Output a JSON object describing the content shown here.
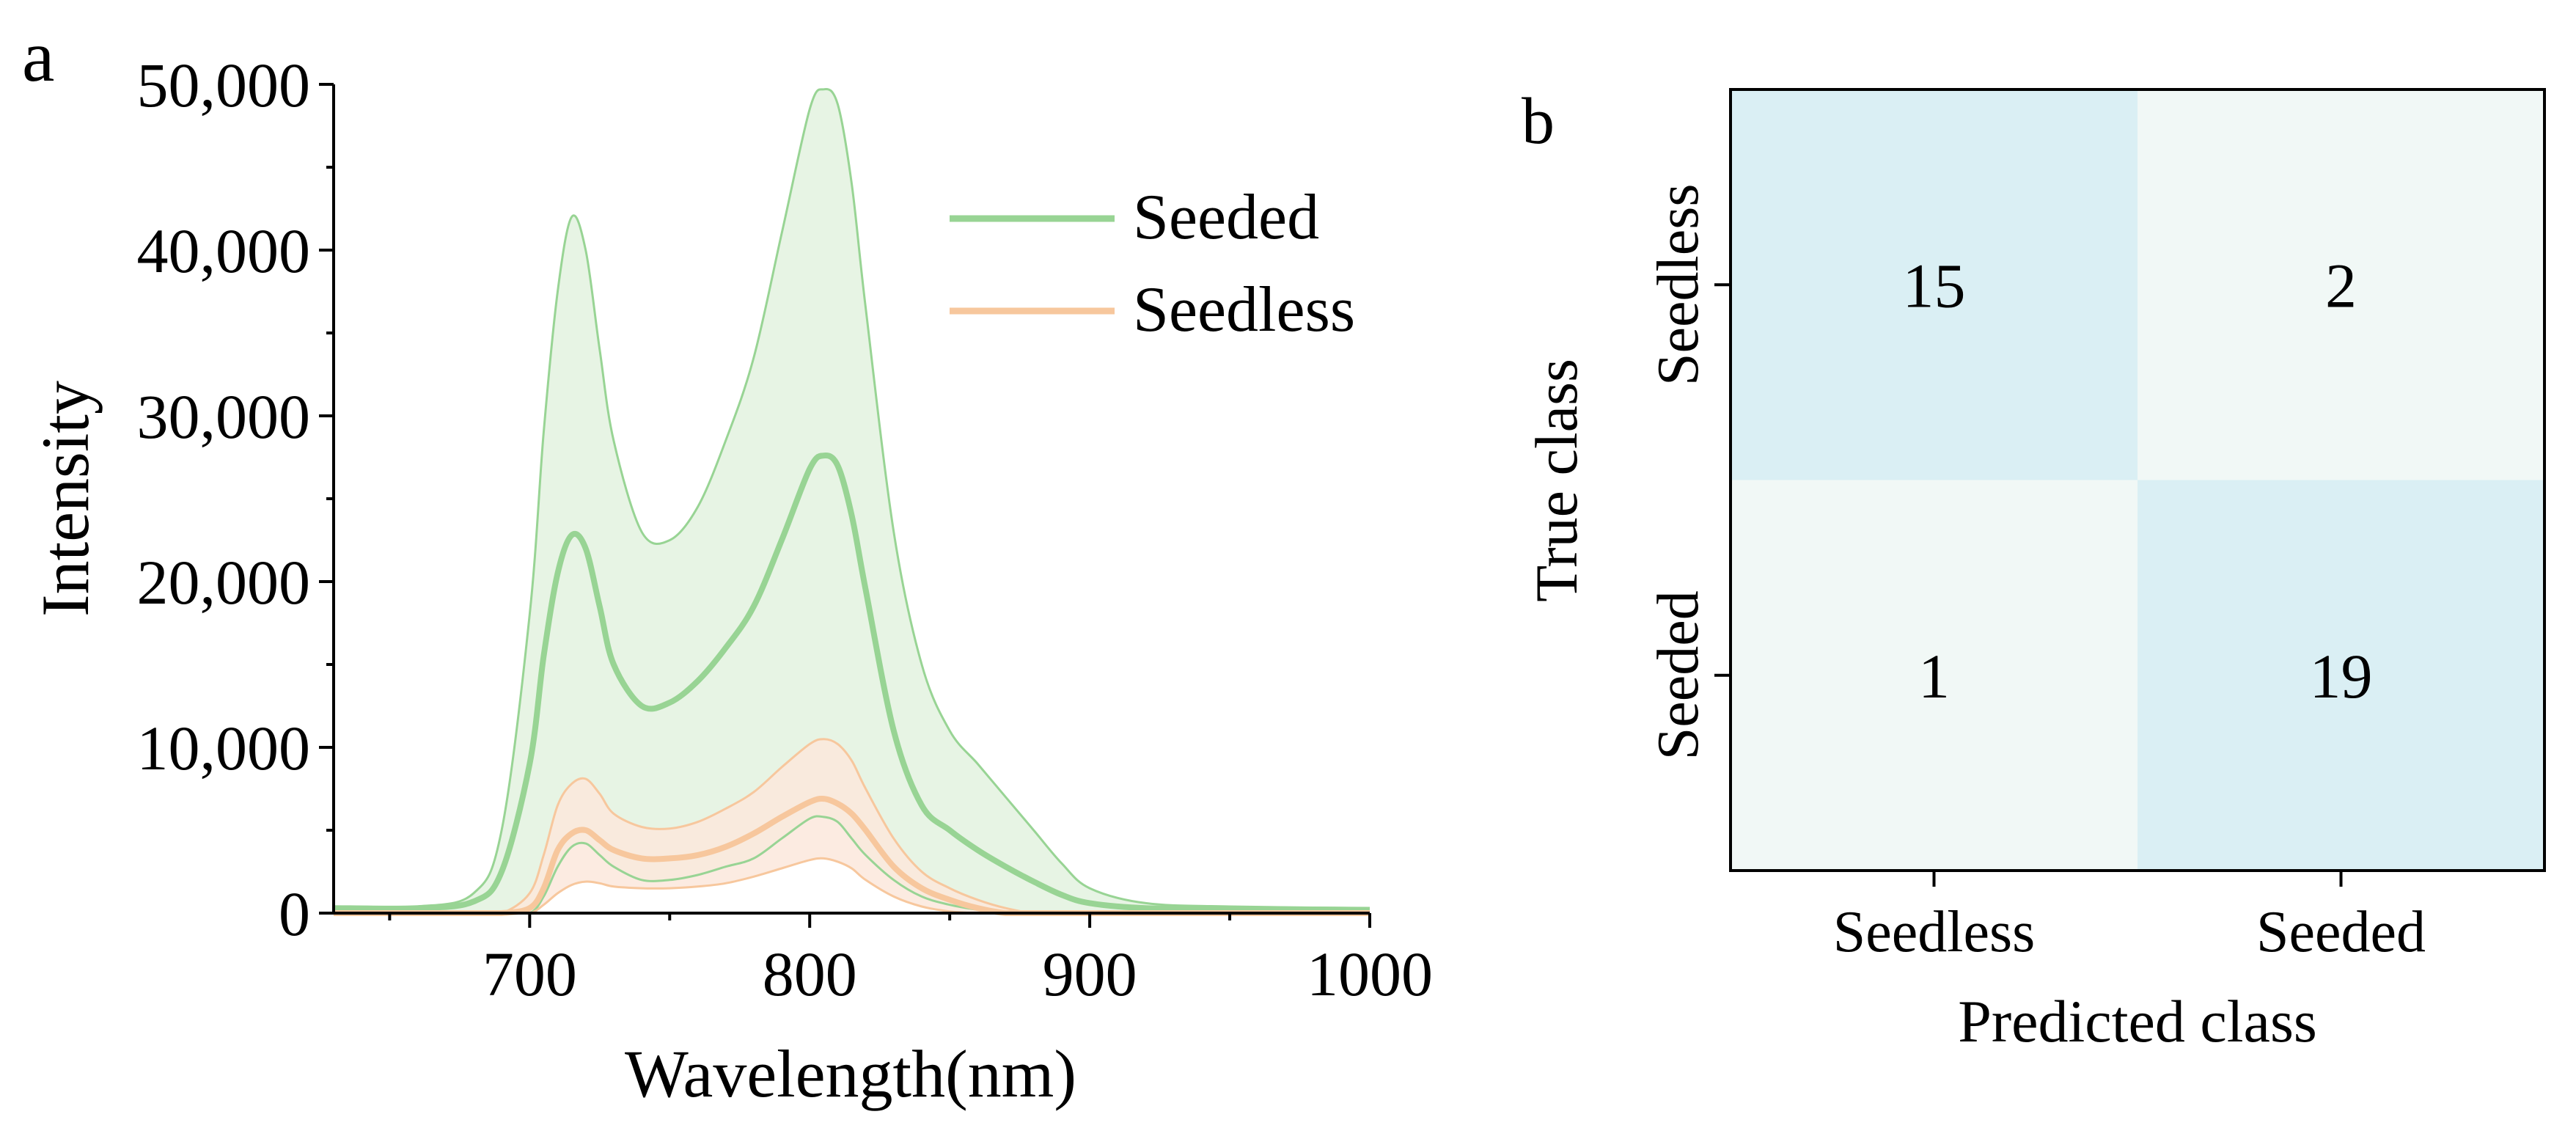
{
  "chart_data": [
    {
      "panel_label": "a",
      "type": "area",
      "xlabel": "Wavelength(nm)",
      "ylabel": "Intensity",
      "xlim": [
        630,
        1000
      ],
      "ylim": [
        0,
        50000
      ],
      "x_ticks": [
        700,
        800,
        900,
        1000
      ],
      "x_tick_labels": [
        "700",
        "800",
        "900",
        "1000"
      ],
      "y_ticks": [
        0,
        10000,
        20000,
        30000,
        40000,
        50000
      ],
      "y_tick_labels": [
        "0",
        "10,000",
        "20,000",
        "30,000",
        "40,000",
        "50,000"
      ],
      "legend": {
        "position": "top-right",
        "entries": [
          "Seeded",
          "Seedless"
        ]
      },
      "x": [
        630,
        660,
        680,
        690,
        700,
        705,
        710,
        715,
        720,
        725,
        730,
        740,
        750,
        760,
        770,
        780,
        790,
        800,
        805,
        810,
        815,
        820,
        830,
        840,
        850,
        860,
        870,
        880,
        890,
        900,
        920,
        950,
        1000
      ],
      "series": [
        {
          "name": "Seeded",
          "color": "#98d494",
          "fill": "#e7f4e4",
          "mean": [
            300,
            300,
            700,
            2500,
            9000,
            15500,
            20500,
            22800,
            22000,
            18500,
            15000,
            12500,
            12700,
            14000,
            16000,
            18500,
            22500,
            26800,
            27600,
            27000,
            24000,
            19500,
            11000,
            6500,
            5000,
            3800,
            2800,
            1900,
            1100,
            600,
            300,
            250,
            200
          ],
          "upper": [
            350,
            400,
            1200,
            5000,
            18000,
            29000,
            37500,
            42000,
            40000,
            34000,
            28500,
            23000,
            22500,
            24500,
            28500,
            33500,
            41000,
            48500,
            49700,
            48800,
            44000,
            36500,
            23000,
            15000,
            11000,
            9000,
            7000,
            5000,
            3000,
            1500,
            600,
            400,
            300
          ],
          "lower": [
            0,
            0,
            0,
            0,
            0,
            1000,
            2800,
            4000,
            4200,
            3500,
            2800,
            2000,
            2000,
            2300,
            2800,
            3300,
            4500,
            5700,
            5800,
            5500,
            4500,
            3500,
            2000,
            1000,
            500,
            200,
            0,
            0,
            0,
            0,
            0,
            0,
            0
          ]
        },
        {
          "name": "Seedless",
          "color": "#f7c79d",
          "fill": "#fce8dc",
          "mean": [
            0,
            0,
            0,
            0,
            300,
            1500,
            3800,
            4800,
            5000,
            4400,
            3800,
            3300,
            3300,
            3500,
            4000,
            4800,
            5800,
            6700,
            6900,
            6600,
            6000,
            5000,
            2800,
            1500,
            800,
            300,
            0,
            0,
            0,
            0,
            0,
            0,
            0
          ],
          "upper": [
            0,
            0,
            0,
            0,
            1200,
            3500,
            6500,
            7800,
            8100,
            7200,
            6000,
            5200,
            5100,
            5500,
            6300,
            7300,
            8800,
            10200,
            10500,
            10200,
            9200,
            7500,
            4500,
            2500,
            1500,
            800,
            300,
            0,
            0,
            0,
            0,
            0,
            0
          ],
          "lower": [
            0,
            0,
            0,
            0,
            0,
            500,
            1200,
            1700,
            1900,
            1800,
            1600,
            1500,
            1500,
            1600,
            1800,
            2200,
            2700,
            3200,
            3300,
            3100,
            2700,
            2000,
            1000,
            400,
            100,
            0,
            0,
            0,
            0,
            0,
            0,
            0,
            0
          ]
        }
      ]
    },
    {
      "panel_label": "b",
      "type": "heatmap",
      "title": "",
      "xlabel": "Predicted class",
      "ylabel": "True class",
      "x_categories": [
        "Seedless",
        "Seeded"
      ],
      "y_categories": [
        "Seedless",
        "Seeded"
      ],
      "values": [
        [
          15,
          2
        ],
        [
          1,
          19
        ]
      ],
      "colors": {
        "high": "#daeff4",
        "low": "#f1f8f6"
      }
    }
  ]
}
